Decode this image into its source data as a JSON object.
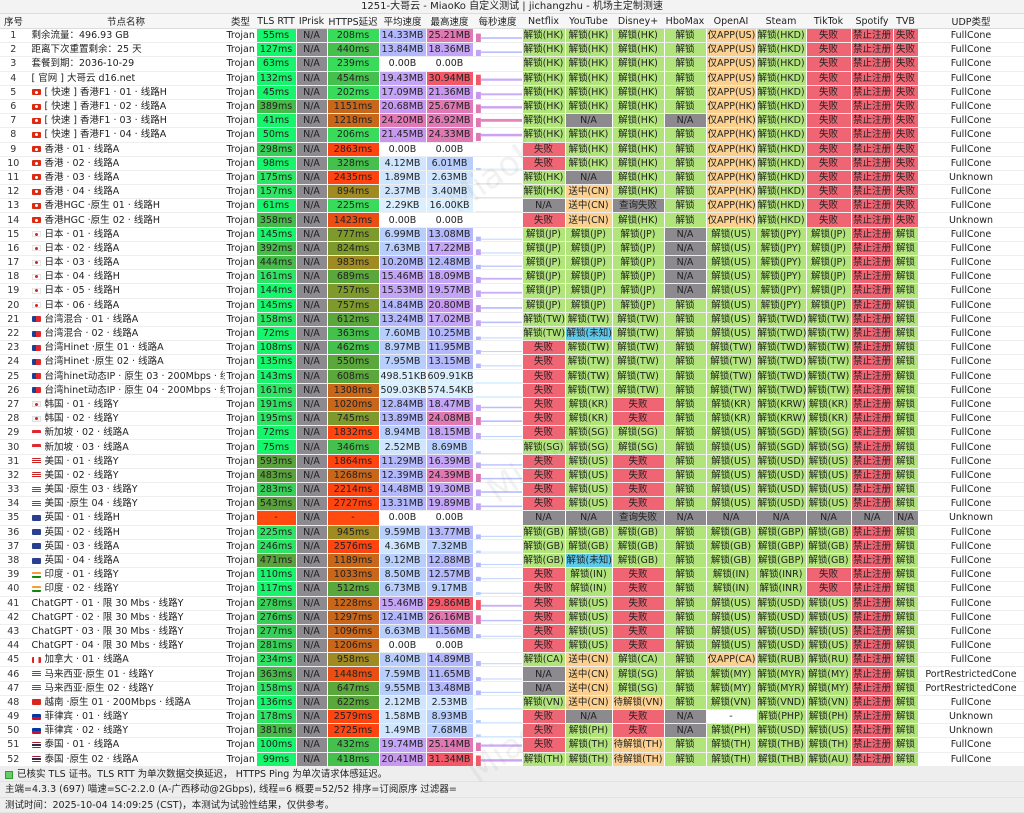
{
  "title": "1251-大哥云 - MiaoKo 自定义测试 | jichangzhu - 机场主定制测速",
  "watermark": "MiaoKo",
  "columns": [
    "序号",
    "节点名称",
    "类型",
    "TLS RTT",
    "IPrisk",
    "HTTPS延迟",
    "平均速度",
    "最高速度",
    "每秒速度",
    "Netflix",
    "YouTube",
    "Disney+",
    "HboMax",
    "OpenAI",
    "Steam",
    "TikTok",
    "Spotify",
    "TVB",
    "UDP类型"
  ],
  "colors": {
    "unlock": "#b2e47c",
    "fail": "#ef6574",
    "na": "#8c8a8e",
    "partial": "#fcd08f",
    "unknown": "#5cc8ea"
  },
  "rows": [
    [
      "1",
      "剩余流量：496.93 GB",
      "",
      "Trojan",
      "55ms",
      "N/A",
      "208ms",
      "14.33MB",
      "25.21MB",
      "解锁(HK)",
      "解锁(HK)",
      "解锁(HK)",
      "解锁",
      "仅APP(US)",
      "解锁(HKD)",
      "失败",
      "禁止注册",
      "失败",
      "FullCone"
    ],
    [
      "2",
      "距离下次重置剩余：25 天",
      "",
      "Trojan",
      "127ms",
      "N/A",
      "440ms",
      "13.84MB",
      "18.36MB",
      "解锁(HK)",
      "解锁(HK)",
      "解锁(HK)",
      "解锁",
      "仅APP(US)",
      "解锁(HKD)",
      "失败",
      "禁止注册",
      "失败",
      "FullCone"
    ],
    [
      "3",
      "套餐到期：2036-10-29",
      "",
      "Trojan",
      "63ms",
      "N/A",
      "239ms",
      "0.00B",
      "0.00B",
      "解锁(HK)",
      "解锁(HK)",
      "解锁(HK)",
      "解锁",
      "仅APP(US)",
      "解锁(HKD)",
      "失败",
      "禁止注册",
      "失败",
      "FullCone"
    ],
    [
      "4",
      "[ 官网 ] 大哥云 d16.net",
      "",
      "Trojan",
      "132ms",
      "N/A",
      "454ms",
      "19.43MB",
      "30.94MB",
      "解锁(HK)",
      "解锁(HK)",
      "解锁(HK)",
      "解锁",
      "仅APP(US)",
      "解锁(HKD)",
      "失败",
      "禁止注册",
      "失败",
      "FullCone"
    ],
    [
      "5",
      "[ 快速 ] 香港F1 · 01 · 线路H",
      "hk",
      "Trojan",
      "45ms",
      "N/A",
      "202ms",
      "17.09MB",
      "21.36MB",
      "解锁(HK)",
      "解锁(HK)",
      "解锁(HK)",
      "解锁",
      "仅APP(US)",
      "解锁(HKD)",
      "失败",
      "禁止注册",
      "失败",
      "FullCone"
    ],
    [
      "6",
      "[ 快速 ] 香港F1 · 02 · 线路A",
      "hk",
      "Trojan",
      "389ms",
      "N/A",
      "1151ms",
      "20.68MB",
      "25.67MB",
      "解锁(HK)",
      "解锁(HK)",
      "解锁(HK)",
      "解锁",
      "仅APP(HK)",
      "解锁(HKD)",
      "失败",
      "禁止注册",
      "失败",
      "FullCone"
    ],
    [
      "7",
      "[ 快速 ] 香港F1 · 03 · 线路H",
      "hk",
      "Trojan",
      "41ms",
      "N/A",
      "1218ms",
      "24.20MB",
      "26.92MB",
      "解锁(HK)",
      "N/A",
      "解锁(HK)",
      "N/A",
      "仅APP(HK)",
      "解锁(HKD)",
      "失败",
      "禁止注册",
      "失败",
      "FullCone"
    ],
    [
      "8",
      "[ 快速 ] 香港F1 · 04 · 线路A",
      "hk",
      "Trojan",
      "50ms",
      "N/A",
      "206ms",
      "21.45MB",
      "24.33MB",
      "解锁(HK)",
      "解锁(HK)",
      "解锁(HK)",
      "解锁",
      "仅APP(HK)",
      "解锁(HKD)",
      "失败",
      "禁止注册",
      "失败",
      "FullCone"
    ],
    [
      "9",
      "香港 · 01 · 线路A",
      "hk",
      "Trojan",
      "298ms",
      "N/A",
      "2863ms",
      "0.00B",
      "0.00B",
      "失败",
      "解锁(HK)",
      "解锁(HK)",
      "解锁",
      "仅APP(HK)",
      "解锁(HKD)",
      "失败",
      "禁止注册",
      "失败",
      "FullCone"
    ],
    [
      "10",
      "香港 · 02 · 线路A",
      "hk",
      "Trojan",
      "98ms",
      "N/A",
      "328ms",
      "4.12MB",
      "6.01MB",
      "失败",
      "解锁(HK)",
      "解锁(HK)",
      "解锁",
      "仅APP(HK)",
      "解锁(HKD)",
      "失败",
      "禁止注册",
      "失败",
      "FullCone"
    ],
    [
      "11",
      "香港 · 03 · 线路A",
      "hk",
      "Trojan",
      "175ms",
      "N/A",
      "2435ms",
      "1.89MB",
      "2.63MB",
      "解锁(HK)",
      "N/A",
      "解锁(HK)",
      "解锁",
      "仅APP(HK)",
      "解锁(HKD)",
      "失败",
      "禁止注册",
      "失败",
      "Unknown"
    ],
    [
      "12",
      "香港 · 04 · 线路A",
      "hk",
      "Trojan",
      "157ms",
      "N/A",
      "894ms",
      "2.37MB",
      "3.40MB",
      "解锁(HK)",
      "送中(CN)",
      "解锁(HK)",
      "解锁",
      "仅APP(HK)",
      "解锁(HKD)",
      "失败",
      "禁止注册",
      "失败",
      "FullCone"
    ],
    [
      "13",
      "香港HGC ·原生  01 · 线路H",
      "hk",
      "Trojan",
      "61ms",
      "N/A",
      "225ms",
      "2.29KB",
      "16.00KB",
      "N/A",
      "送中(CN)",
      "查询失败",
      "解锁",
      "仅APP(HK)",
      "解锁(HKD)",
      "失败",
      "禁止注册",
      "失败",
      "FullCone"
    ],
    [
      "14",
      "香港HGC ·原生  02 · 线路H",
      "hk",
      "Trojan",
      "358ms",
      "N/A",
      "1423ms",
      "0.00B",
      "0.00B",
      "失败",
      "送中(CN)",
      "解锁(HK)",
      "解锁",
      "仅APP(HK)",
      "解锁(HKD)",
      "失败",
      "禁止注册",
      "失败",
      "Unknown"
    ],
    [
      "15",
      "日本 · 01 · 线路A",
      "jp",
      "Trojan",
      "145ms",
      "N/A",
      "777ms",
      "6.99MB",
      "13.08MB",
      "解锁(JP)",
      "解锁(JP)",
      "解锁(JP)",
      "N/A",
      "解锁(US)",
      "解锁(JPY)",
      "解锁(JP)",
      "禁止注册",
      "解锁",
      "FullCone"
    ],
    [
      "16",
      "日本 · 02 · 线路A",
      "jp",
      "Trojan",
      "392ms",
      "N/A",
      "824ms",
      "7.63MB",
      "17.22MB",
      "解锁(JP)",
      "解锁(JP)",
      "解锁(JP)",
      "N/A",
      "解锁(US)",
      "解锁(JPY)",
      "解锁(JP)",
      "禁止注册",
      "解锁",
      "FullCone"
    ],
    [
      "17",
      "日本 · 03 · 线路A",
      "jp",
      "Trojan",
      "444ms",
      "N/A",
      "983ms",
      "10.20MB",
      "12.48MB",
      "解锁(JP)",
      "解锁(JP)",
      "解锁(JP)",
      "N/A",
      "解锁(US)",
      "解锁(JPY)",
      "解锁(JP)",
      "禁止注册",
      "解锁",
      "FullCone"
    ],
    [
      "18",
      "日本 · 04 · 线路H",
      "jp",
      "Trojan",
      "161ms",
      "N/A",
      "689ms",
      "15.46MB",
      "18.09MB",
      "解锁(JP)",
      "解锁(JP)",
      "解锁(JP)",
      "N/A",
      "解锁(US)",
      "解锁(JPY)",
      "解锁(JP)",
      "禁止注册",
      "解锁",
      "FullCone"
    ],
    [
      "19",
      "日本 · 05 · 线路H",
      "jp",
      "Trojan",
      "144ms",
      "N/A",
      "757ms",
      "15.53MB",
      "19.57MB",
      "解锁(JP)",
      "解锁(JP)",
      "解锁(JP)",
      "N/A",
      "解锁(US)",
      "解锁(JPY)",
      "解锁(JP)",
      "禁止注册",
      "解锁",
      "FullCone"
    ],
    [
      "20",
      "日本 · 06 · 线路A",
      "jp",
      "Trojan",
      "145ms",
      "N/A",
      "757ms",
      "14.84MB",
      "20.80MB",
      "解锁(JP)",
      "解锁(JP)",
      "解锁(JP)",
      "解锁",
      "解锁(US)",
      "解锁(JPY)",
      "解锁(JP)",
      "禁止注册",
      "解锁",
      "FullCone"
    ],
    [
      "21",
      "台湾混合 · 01 · 线路A",
      "tw",
      "Trojan",
      "158ms",
      "N/A",
      "612ms",
      "13.24MB",
      "17.02MB",
      "解锁(TW)",
      "解锁(TW)",
      "解锁(TW)",
      "解锁",
      "解锁(US)",
      "解锁(TWD)",
      "解锁(TW)",
      "禁止注册",
      "解锁",
      "FullCone"
    ],
    [
      "22",
      "台湾混合 · 02 · 线路A",
      "tw",
      "Trojan",
      "72ms",
      "N/A",
      "363ms",
      "7.60MB",
      "10.25MB",
      "解锁(TW)",
      "解锁(未知)",
      "解锁(TW)",
      "解锁",
      "解锁(US)",
      "解锁(TWD)",
      "解锁(TW)",
      "禁止注册",
      "解锁",
      "FullCone"
    ],
    [
      "23",
      "台湾Hinet ·原生 01 · 线路A",
      "tw",
      "Trojan",
      "108ms",
      "N/A",
      "462ms",
      "8.97MB",
      "11.95MB",
      "失败",
      "解锁(TW)",
      "解锁(TW)",
      "解锁",
      "解锁(TW)",
      "解锁(TWD)",
      "解锁(TW)",
      "禁止注册",
      "解锁",
      "FullCone"
    ],
    [
      "24",
      "台湾Hinet ·原生 02 · 线路A",
      "tw",
      "Trojan",
      "135ms",
      "N/A",
      "550ms",
      "7.95MB",
      "13.15MB",
      "失败",
      "解锁(TW)",
      "解锁(TW)",
      "解锁",
      "解锁(TW)",
      "解锁(TWD)",
      "解锁(TW)",
      "禁止注册",
      "解锁",
      "FullCone"
    ],
    [
      "25",
      "台湾hinet动态IP · 原生 03 · 200Mbps · 线路A",
      "tw",
      "Trojan",
      "143ms",
      "N/A",
      "608ms",
      "498.51KB",
      "609.91KB",
      "失败",
      "解锁(TW)",
      "解锁(TW)",
      "解锁",
      "解锁(TW)",
      "解锁(TWD)",
      "解锁(TW)",
      "禁止注册",
      "解锁",
      "FullCone"
    ],
    [
      "26",
      "台湾hinet动态IP · 原生 04 · 200Mbps · 线路A",
      "tw",
      "Trojan",
      "161ms",
      "N/A",
      "1308ms",
      "509.03KB",
      "574.54KB",
      "失败",
      "解锁(TW)",
      "解锁(TW)",
      "解锁",
      "解锁(TW)",
      "解锁(TWD)",
      "解锁(TW)",
      "禁止注册",
      "解锁",
      "FullCone"
    ],
    [
      "27",
      "韩国 · 01 · 线路Y",
      "kr",
      "Trojan",
      "191ms",
      "N/A",
      "1020ms",
      "12.84MB",
      "18.47MB",
      "失败",
      "解锁(KR)",
      "失败",
      "解锁",
      "解锁(KR)",
      "解锁(KRW)",
      "解锁(KR)",
      "禁止注册",
      "解锁",
      "FullCone"
    ],
    [
      "28",
      "韩国 · 02 · 线路Y",
      "kr",
      "Trojan",
      "195ms",
      "N/A",
      "745ms",
      "13.89MB",
      "24.08MB",
      "失败",
      "解锁(KR)",
      "失败",
      "解锁",
      "解锁(KR)",
      "解锁(KRW)",
      "解锁(KR)",
      "禁止注册",
      "解锁",
      "FullCone"
    ],
    [
      "29",
      "新加坡 · 02 · 线路A",
      "sg",
      "Trojan",
      "72ms",
      "N/A",
      "1832ms",
      "8.94MB",
      "18.15MB",
      "失败",
      "解锁(SG)",
      "解锁(SG)",
      "解锁",
      "解锁(US)",
      "解锁(SGD)",
      "解锁(SG)",
      "禁止注册",
      "解锁",
      "FullCone"
    ],
    [
      "30",
      "新加坡 · 03 · 线路A",
      "sg",
      "Trojan",
      "75ms",
      "N/A",
      "346ms",
      "2.52MB",
      "8.69MB",
      "解锁(SG)",
      "解锁(SG)",
      "解锁(SG)",
      "解锁",
      "解锁(US)",
      "解锁(SGD)",
      "解锁(SG)",
      "禁止注册",
      "解锁",
      "FullCone"
    ],
    [
      "31",
      "美国 · 01 · 线路Y",
      "us",
      "Trojan",
      "593ms",
      "N/A",
      "1864ms",
      "11.29MB",
      "16.39MB",
      "失败",
      "解锁(US)",
      "失败",
      "解锁",
      "解锁(US)",
      "解锁(USD)",
      "解锁(US)",
      "禁止注册",
      "解锁",
      "FullCone"
    ],
    [
      "32",
      "美国 · 02 · 线路Y",
      "us",
      "Trojan",
      "483ms",
      "N/A",
      "1268ms",
      "12.39MB",
      "24.39MB",
      "失败",
      "解锁(US)",
      "失败",
      "解锁",
      "解锁(US)",
      "解锁(USD)",
      "解锁(US)",
      "禁止注册",
      "解锁",
      "FullCone"
    ],
    [
      "33",
      "美国 ·原生 03 · 线路Y",
      "us",
      "Trojan",
      "283ms",
      "N/A",
      "2214ms",
      "14.48MB",
      "19.30MB",
      "失败",
      "解锁(US)",
      "失败",
      "解锁",
      "解锁(US)",
      "解锁(USD)",
      "解锁(US)",
      "禁止注册",
      "解锁",
      "FullCone"
    ],
    [
      "34",
      "美国 ·原生 04 · 线路Y",
      "us",
      "Trojan",
      "543ms",
      "N/A",
      "2727ms",
      "13.31MB",
      "19.89MB",
      "失败",
      "解锁(US)",
      "失败",
      "解锁",
      "解锁(US)",
      "解锁(USD)",
      "解锁(US)",
      "禁止注册",
      "解锁",
      "FullCone"
    ],
    [
      "35",
      "英国 · 01 · 线路H",
      "gb",
      "Trojan",
      "-",
      "N/A",
      "-",
      "0.00B",
      "0.00B",
      "N/A",
      "N/A",
      "查询失败",
      "N/A",
      "N/A",
      "N/A",
      "N/A",
      "N/A",
      "N/A",
      "Unknown"
    ],
    [
      "36",
      "英国 · 02 · 线路H",
      "gb",
      "Trojan",
      "225ms",
      "N/A",
      "945ms",
      "9.59MB",
      "13.77MB",
      "解锁(GB)",
      "解锁(GB)",
      "解锁(GB)",
      "解锁",
      "解锁(GB)",
      "解锁(GBP)",
      "解锁(GB)",
      "禁止注册",
      "解锁",
      "FullCone"
    ],
    [
      "37",
      "英国 · 03 · 线路A",
      "gb",
      "Trojan",
      "246ms",
      "N/A",
      "2576ms",
      "4.36MB",
      "7.32MB",
      "解锁(GB)",
      "解锁(GB)",
      "解锁(GB)",
      "解锁",
      "解锁(GB)",
      "解锁(GBP)",
      "解锁(GB)",
      "禁止注册",
      "解锁",
      "FullCone"
    ],
    [
      "38",
      "英国 · 04 · 线路A",
      "gb",
      "Trojan",
      "471ms",
      "N/A",
      "1189ms",
      "9.12MB",
      "12.88MB",
      "解锁(GB)",
      "解锁(未知)",
      "解锁(GB)",
      "解锁",
      "解锁(GB)",
      "解锁(GBP)",
      "解锁(GB)",
      "禁止注册",
      "解锁",
      "FullCone"
    ],
    [
      "39",
      "印度 · 01 · 线路Y",
      "in",
      "Trojan",
      "110ms",
      "N/A",
      "1033ms",
      "8.50MB",
      "12.57MB",
      "失败",
      "解锁(IN)",
      "失败",
      "解锁",
      "解锁(IN)",
      "解锁(INR)",
      "失败",
      "禁止注册",
      "解锁",
      "FullCone"
    ],
    [
      "40",
      "印度 · 02 · 线路Y",
      "in",
      "Trojan",
      "117ms",
      "N/A",
      "512ms",
      "6.73MB",
      "9.17MB",
      "失败",
      "解锁(IN)",
      "失败",
      "解锁",
      "解锁(IN)",
      "解锁(INR)",
      "失败",
      "禁止注册",
      "解锁",
      "FullCone"
    ],
    [
      "41",
      "ChatGPT · 01 · 限 30 Mbs · 线路Y",
      "",
      "Trojan",
      "278ms",
      "N/A",
      "1228ms",
      "15.46MB",
      "29.86MB",
      "失败",
      "解锁(US)",
      "失败",
      "解锁",
      "解锁(US)",
      "解锁(USD)",
      "解锁(US)",
      "禁止注册",
      "解锁",
      "FullCone"
    ],
    [
      "42",
      "ChatGPT · 02 · 限 30 Mbs · 线路Y",
      "",
      "Trojan",
      "276ms",
      "N/A",
      "1297ms",
      "12.41MB",
      "26.16MB",
      "失败",
      "解锁(US)",
      "失败",
      "解锁",
      "解锁(US)",
      "解锁(USD)",
      "解锁(US)",
      "禁止注册",
      "解锁",
      "FullCone"
    ],
    [
      "43",
      "ChatGPT · 03 · 限 30 Mbs · 线路Y",
      "",
      "Trojan",
      "277ms",
      "N/A",
      "1096ms",
      "6.63MB",
      "11.56MB",
      "失败",
      "解锁(US)",
      "失败",
      "解锁",
      "解锁(US)",
      "解锁(USD)",
      "解锁(US)",
      "禁止注册",
      "解锁",
      "FullCone"
    ],
    [
      "44",
      "ChatGPT · 04 · 限 30 Mbs · 线路Y",
      "",
      "Trojan",
      "281ms",
      "N/A",
      "1206ms",
      "0.00B",
      "0.00B",
      "失败",
      "解锁(US)",
      "失败",
      "解锁",
      "解锁(US)",
      "解锁(USD)",
      "解锁(US)",
      "禁止注册",
      "解锁",
      "FullCone"
    ],
    [
      "45",
      "加拿大 · 01 · 线路A",
      "ca",
      "Trojan",
      "234ms",
      "N/A",
      "958ms",
      "8.40MB",
      "14.89MB",
      "解锁(CA)",
      "送中(CN)",
      "解锁(CA)",
      "解锁",
      "仅APP(CA)",
      "解锁(RUB)",
      "解锁(RU)",
      "禁止注册",
      "解锁",
      "FullCone"
    ],
    [
      "46",
      "马来西亚·原生 01 · 线路Y",
      "my",
      "Trojan",
      "363ms",
      "N/A",
      "1448ms",
      "7.59MB",
      "11.65MB",
      "N/A",
      "送中(CN)",
      "解锁(SG)",
      "解锁",
      "解锁(MY)",
      "解锁(MYR)",
      "解锁(MY)",
      "禁止注册",
      "解锁",
      "PortRestrictedCone"
    ],
    [
      "47",
      "马来西亚·原生  02 · 线路Y",
      "my",
      "Trojan",
      "158ms",
      "N/A",
      "647ms",
      "9.55MB",
      "13.48MB",
      "N/A",
      "送中(CN)",
      "解锁(SG)",
      "解锁",
      "解锁(MY)",
      "解锁(MYR)",
      "解锁(MY)",
      "禁止注册",
      "解锁",
      "PortRestrictedCone"
    ],
    [
      "48",
      "越南 ·原生 01 · 200Mbps · 线路A",
      "vn",
      "Trojan",
      "136ms",
      "N/A",
      "622ms",
      "2.12MB",
      "2.53MB",
      "解锁(VN)",
      "送中(CN)",
      "待解锁(VN)",
      "解锁",
      "解锁(VN)",
      "解锁(VND)",
      "解锁(VN)",
      "禁止注册",
      "解锁",
      "FullCone"
    ],
    [
      "49",
      "菲律宾 · 01 · 线路Y",
      "ph",
      "Trojan",
      "178ms",
      "N/A",
      "2579ms",
      "1.58MB",
      "8.93MB",
      "失败",
      "N/A",
      "失败",
      "N/A",
      "-",
      "解锁(PHP)",
      "解锁(PH)",
      "禁止注册",
      "解锁",
      "Unknown"
    ],
    [
      "50",
      "菲律宾 · 02 · 线路Y",
      "ph",
      "Trojan",
      "381ms",
      "N/A",
      "2725ms",
      "1.49MB",
      "7.68MB",
      "失败",
      "解锁(PH)",
      "失败",
      "N/A",
      "解锁(PH)",
      "解锁(USD)",
      "解锁(US)",
      "禁止注册",
      "解锁",
      "Unknown"
    ],
    [
      "51",
      "泰国 · 01 · 线路A",
      "th",
      "Trojan",
      "100ms",
      "N/A",
      "432ms",
      "19.74MB",
      "25.14MB",
      "失败",
      "解锁(TH)",
      "待解锁(TH)",
      "解锁",
      "解锁(TH)",
      "解锁(THB)",
      "解锁(TH)",
      "禁止注册",
      "解锁",
      "FullCone"
    ],
    [
      "52",
      "泰国 ·原生  02 · 线路A",
      "th",
      "Trojan",
      "99ms",
      "N/A",
      "418ms",
      "20.41MB",
      "31.34MB",
      "解锁(TH)",
      "解锁(TH)",
      "待解锁(TH)",
      "解锁",
      "解锁(TH)",
      "解锁(THB)",
      "解锁(AU)",
      "禁止注册",
      "解锁",
      "FullCone"
    ]
  ],
  "footer": {
    "line1": "已核实 TLS 证书。TLS RTT 为单次数据交换延迟， HTTPS Ping 为单次请求体感延迟。",
    "line2": "主端=4.3.3 (697) 喵速=SC-2.2.0 (A-广西移动@2Gbps), 线程=6 概要=52/52 排序=订阅原序 过滤器=",
    "line3": "测试时间：2025-10-04 14:09:25 (CST)，本测试为试验性结果，仅供参考。"
  }
}
